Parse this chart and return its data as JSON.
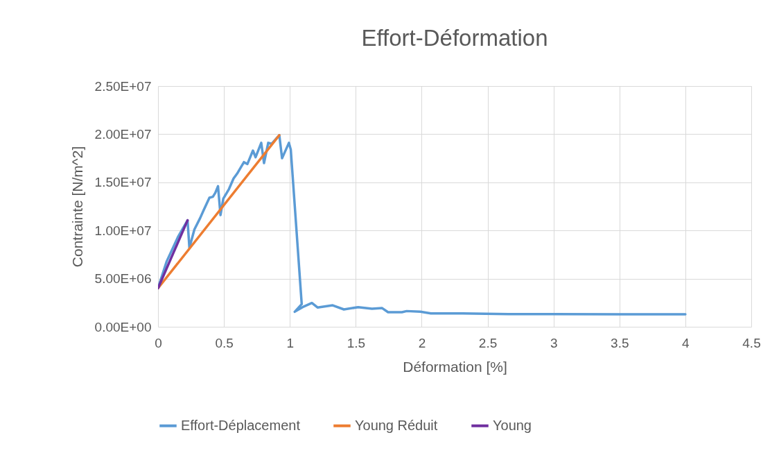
{
  "chart_data": {
    "type": "line",
    "title": "Effort-Déformation",
    "xlabel": "Déformation [%]",
    "ylabel": "Contrainte [N/m^2]",
    "xlim": [
      0,
      4.5
    ],
    "xticks": [
      0,
      0.5,
      1,
      1.5,
      2,
      2.5,
      3,
      3.5,
      4,
      4.5
    ],
    "ylim": [
      0,
      25000000
    ],
    "yticks": [
      {
        "value": 0,
        "label": "0.00E+00"
      },
      {
        "value": 5000000,
        "label": "5.00E+06"
      },
      {
        "value": 10000000,
        "label": "1.00E+07"
      },
      {
        "value": 15000000,
        "label": "1.50E+07"
      },
      {
        "value": 20000000,
        "label": "2.00E+07"
      },
      {
        "value": 25000000,
        "label": "2.50E+07"
      }
    ],
    "grid": true,
    "legend": "bottom",
    "marker": "none",
    "line_style": "solid",
    "series": [
      {
        "name": "Effort-Déplacement",
        "color": "#5b9bd5",
        "x": [
          0,
          0.066,
          0.154,
          0.224,
          0.238,
          0.276,
          0.32,
          0.346,
          0.39,
          0.416,
          0.434,
          0.455,
          0.474,
          0.495,
          0.538,
          0.573,
          0.6,
          0.63,
          0.652,
          0.678,
          0.72,
          0.74,
          0.783,
          0.804,
          0.836,
          0.862,
          0.92,
          0.941,
          0.993,
          1.007,
          1.09,
          1.037,
          1.106,
          1.167,
          1.21,
          1.325,
          1.41,
          1.518,
          1.623,
          1.7,
          1.745,
          1.85,
          1.886,
          1.99,
          2.07,
          2.31,
          2.66,
          3.0,
          3.5,
          4.0
        ],
        "values": [
          4030000,
          6800000,
          9400000,
          11050000,
          8200000,
          10100000,
          11300000,
          12100000,
          13400000,
          13500000,
          13900000,
          14600000,
          11600000,
          13300000,
          14300000,
          15400000,
          15900000,
          16600000,
          17100000,
          16900000,
          18300000,
          17600000,
          19100000,
          17000000,
          19100000,
          19000000,
          19900000,
          17500000,
          19100000,
          18400000,
          2350000,
          1560000,
          2100000,
          2470000,
          2000000,
          2230000,
          1800000,
          2040000,
          1870000,
          1940000,
          1510000,
          1510000,
          1630000,
          1560000,
          1390000,
          1390000,
          1320000,
          1320000,
          1300000,
          1300000
        ]
      },
      {
        "name": "Young Réduit",
        "color": "#ed7d31",
        "x": [
          0,
          0.92
        ],
        "values": [
          4000000,
          19900000
        ]
      },
      {
        "name": "Young",
        "color": "#7030a0",
        "x": [
          0,
          0.224
        ],
        "values": [
          4000000,
          11050000
        ]
      }
    ]
  }
}
